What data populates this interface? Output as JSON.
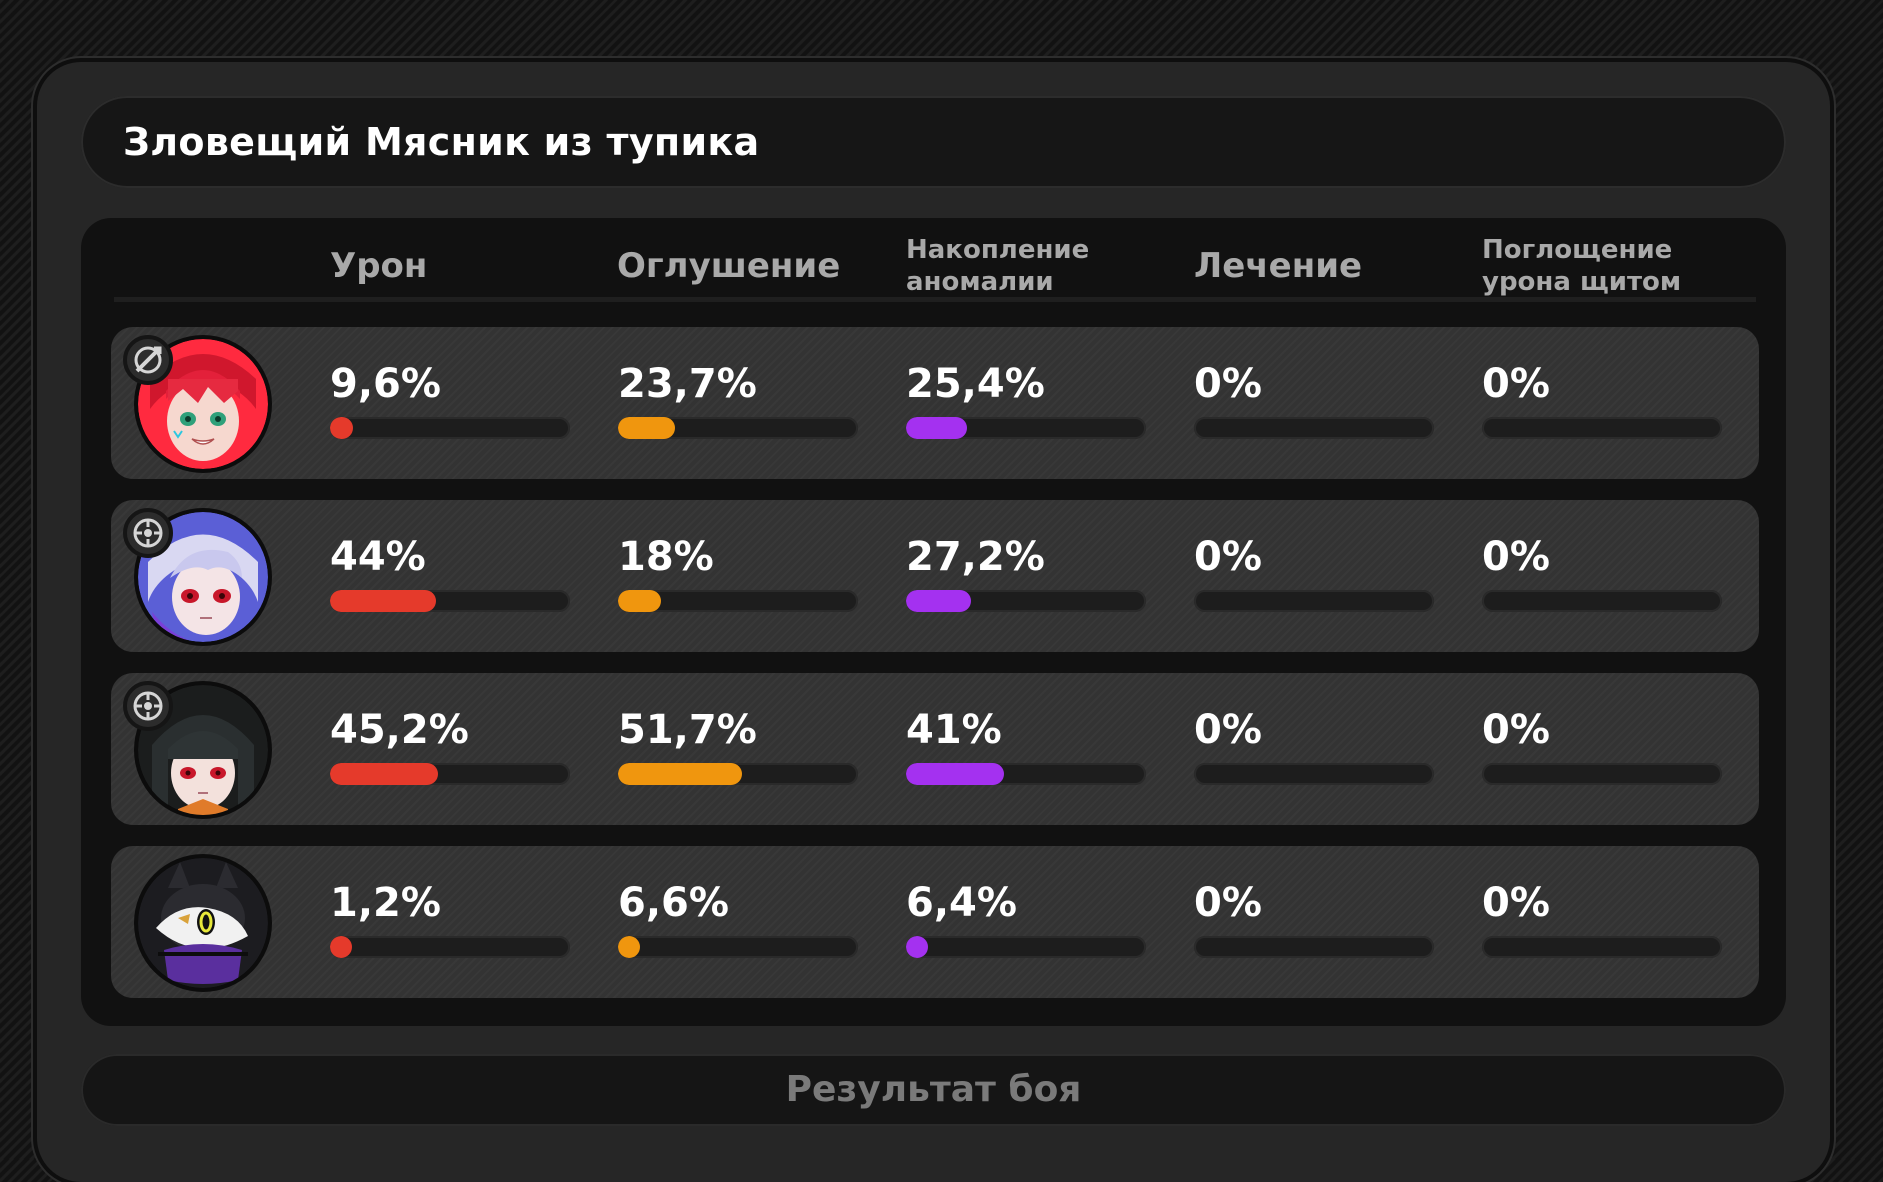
{
  "title": "Зловещий Мясник из тупика",
  "columns": [
    {
      "label": "Урон",
      "color": "#e53a2b"
    },
    {
      "label": "Оглушение",
      "color": "#f0960e"
    },
    {
      "label": "Накопление\nаномалии",
      "color": "#a431f0"
    },
    {
      "label": "Лечение",
      "color": "#3fcf6a"
    },
    {
      "label": "Поглощение\nурона щитом",
      "color": "#3a9ef0"
    }
  ],
  "rows": [
    {
      "portrait": "red-haired-girl-portrait",
      "role_icon": "attack-role-icon",
      "values": [
        {
          "text": "9,6%",
          "pct": 9.6
        },
        {
          "text": "23,7%",
          "pct": 23.7
        },
        {
          "text": "25,4%",
          "pct": 25.4
        },
        {
          "text": "0%",
          "pct": 0
        },
        {
          "text": "0%",
          "pct": 0
        }
      ]
    },
    {
      "portrait": "white-haired-girl-portrait",
      "role_icon": "stun-role-icon",
      "values": [
        {
          "text": "44%",
          "pct": 44
        },
        {
          "text": "18%",
          "pct": 18
        },
        {
          "text": "27,2%",
          "pct": 27.2
        },
        {
          "text": "0%",
          "pct": 0
        },
        {
          "text": "0%",
          "pct": 0
        }
      ]
    },
    {
      "portrait": "dark-haired-girl-portrait",
      "role_icon": "stun-role-icon",
      "values": [
        {
          "text": "45,2%",
          "pct": 45.2
        },
        {
          "text": "51,7%",
          "pct": 51.7
        },
        {
          "text": "41%",
          "pct": 41
        },
        {
          "text": "0%",
          "pct": 0
        },
        {
          "text": "0%",
          "pct": 0
        }
      ]
    },
    {
      "portrait": "bangboo-mascot-portrait",
      "role_icon": "",
      "values": [
        {
          "text": "1,2%",
          "pct": 1.2
        },
        {
          "text": "6,6%",
          "pct": 6.6
        },
        {
          "text": "6,4%",
          "pct": 6.4
        },
        {
          "text": "0%",
          "pct": 0
        },
        {
          "text": "0%",
          "pct": 0
        }
      ]
    }
  ],
  "footer": {
    "result_label": "Результат боя"
  }
}
